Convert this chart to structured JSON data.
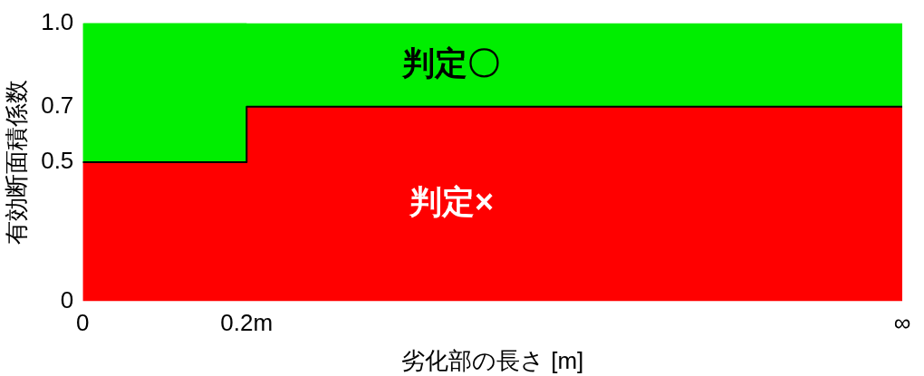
{
  "chart_data": {
    "type": "area",
    "stacked": true,
    "xlabel": "劣化部の長さ [m]",
    "ylabel": "有効断面積係数",
    "x": [
      0,
      0.2,
      0.2,
      1
    ],
    "series": [
      {
        "color": "#ff0000",
        "values": [
          0.5,
          0.5,
          0.7,
          0.7
        ]
      },
      {
        "color": "#00ee00",
        "values": [
          0.5,
          0.5,
          0.3,
          0.3
        ]
      }
    ],
    "xlim": [
      0,
      1
    ],
    "xticks": [
      0,
      {
        "value": 0.2,
        "label": "0.2m"
      },
      {
        "value": 1,
        "label": "∞"
      }
    ],
    "ylim": [
      0,
      1
    ],
    "yticks": [
      0,
      0.5,
      0.7,
      {
        "value": 1,
        "label": "1.0"
      }
    ],
    "annotations": [
      "判定〇",
      "判定×"
    ],
    "grid": false,
    "legend": false
  }
}
